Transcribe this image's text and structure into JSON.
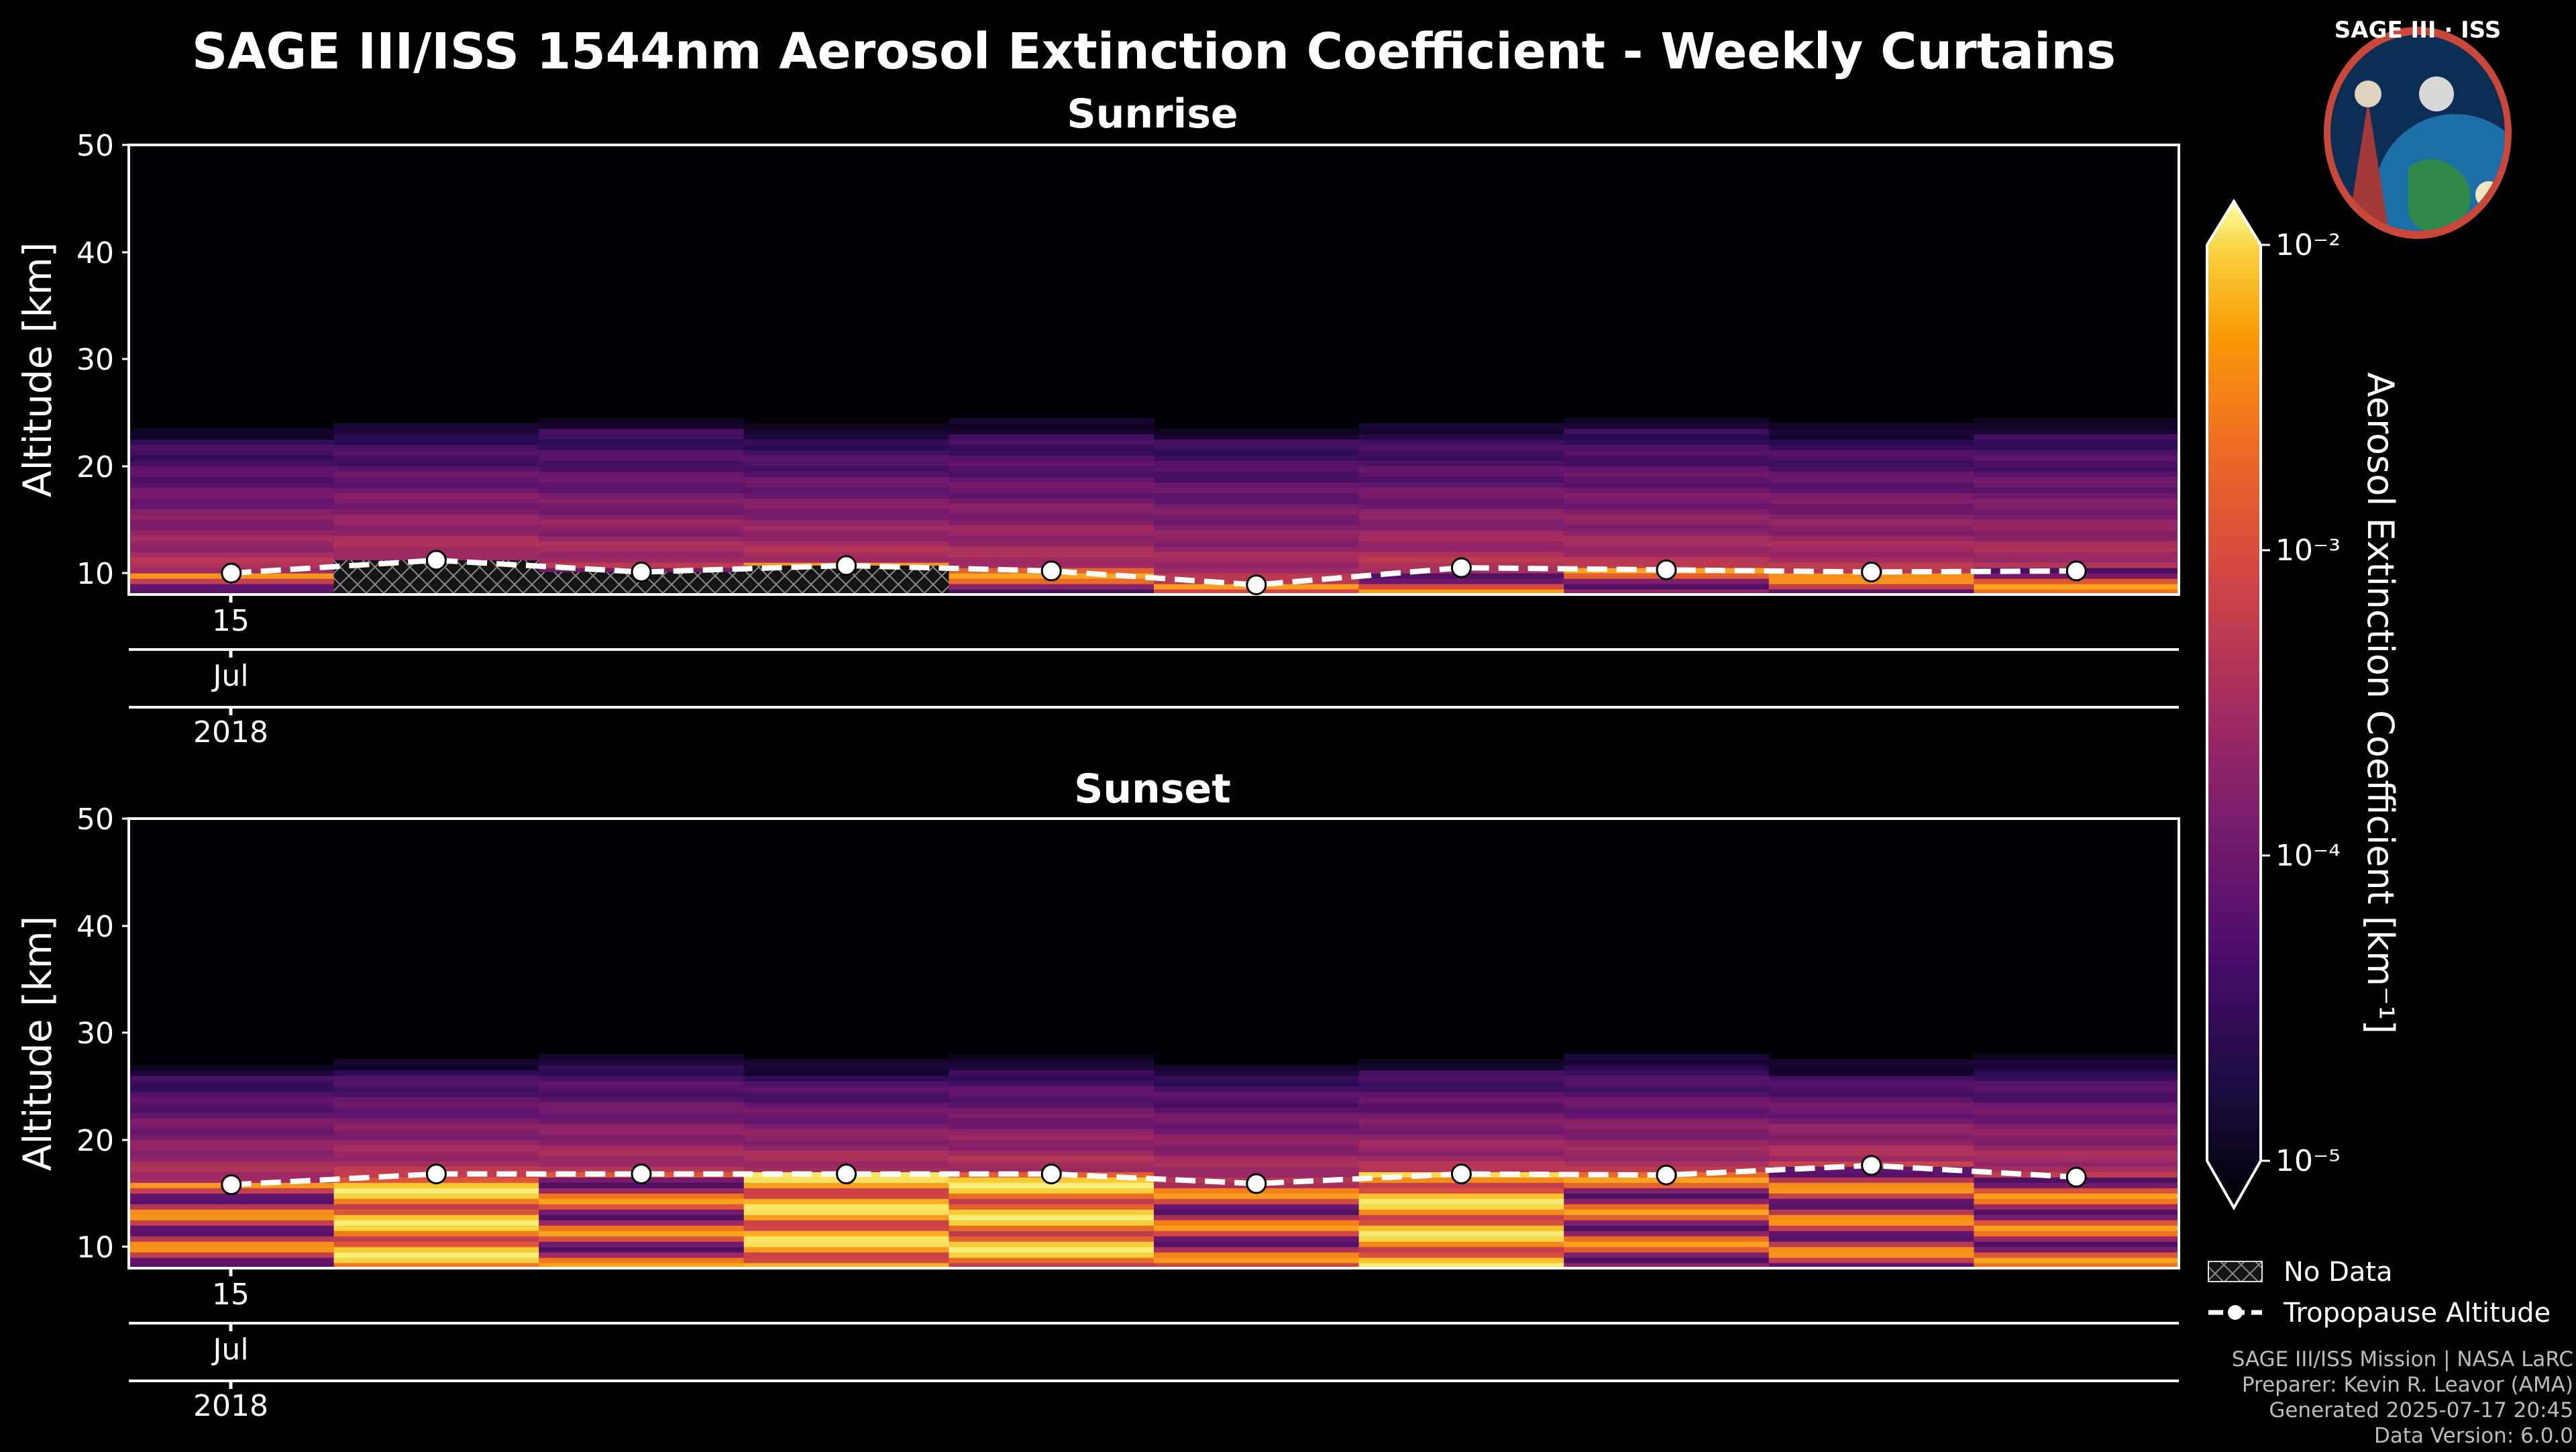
{
  "title": "SAGE III/ISS 1544nm Aerosol Extinction Coefficient - Weekly Curtains",
  "logo": {
    "text": "SAGE III · ISS"
  },
  "colorbar": {
    "label": "Aerosol Extinction Coefficient [km⁻¹]",
    "ticks": [
      "10⁻²",
      "10⁻³",
      "10⁻⁴",
      "10⁻⁵"
    ],
    "colormap": "inferno",
    "scale": "log",
    "range": [
      1e-05,
      0.01
    ]
  },
  "legend": {
    "no_data": "No Data",
    "tropopause": "Tropopause Altitude"
  },
  "credits": [
    "SAGE III/ISS Mission | NASA LaRC",
    "Preparer: Kevin R. Leavor (AMA)",
    "Generated 2025-07-17 20:45",
    "Data Version: 6.0.0"
  ],
  "chart_data": [
    {
      "type": "heatmap",
      "title": "Sunrise",
      "ylabel": "Altitude [km]",
      "ylim": [
        8,
        50
      ],
      "yticks": [
        "50",
        "40",
        "30",
        "20",
        "10"
      ],
      "x_axis": {
        "day": "15",
        "month": "Jul",
        "year": "2018"
      },
      "weeks": 10,
      "tropopause_km": [
        10.0,
        11.2,
        10.1,
        10.7,
        10.2,
        8.9,
        10.5,
        10.3,
        10.1,
        10.2
      ],
      "no_data_weeks": [
        1,
        2,
        3
      ]
    },
    {
      "type": "heatmap",
      "title": "Sunset",
      "ylabel": "Altitude [km]",
      "ylim": [
        8,
        50
      ],
      "yticks": [
        "50",
        "40",
        "30",
        "20",
        "10"
      ],
      "x_axis": {
        "day": "15",
        "month": "Jul",
        "year": "2018"
      },
      "weeks": 10,
      "tropopause_km": [
        15.8,
        16.8,
        16.8,
        16.8,
        16.8,
        15.9,
        16.8,
        16.7,
        17.6,
        16.5
      ],
      "no_data_weeks": []
    }
  ]
}
